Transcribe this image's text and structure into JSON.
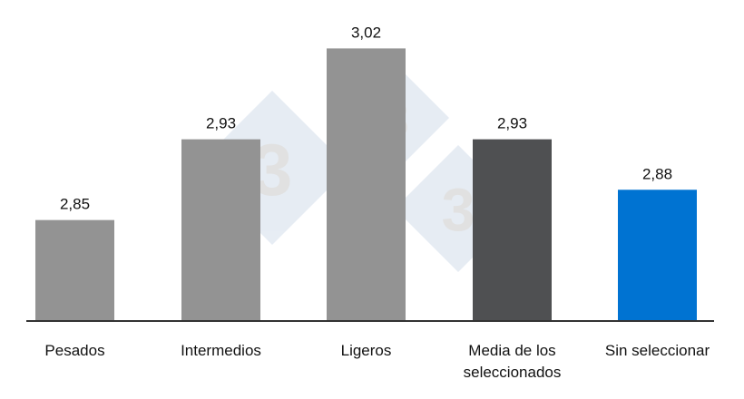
{
  "chart_data": {
    "type": "bar",
    "title": "",
    "xlabel": "",
    "ylabel": "",
    "categories": [
      "Pesados",
      "Intermedios",
      "Ligeros",
      [
        "Media de los",
        "seleccionados"
      ],
      "Sin seleccionar"
    ],
    "values": [
      2.85,
      2.93,
      3.02,
      2.93,
      2.88
    ],
    "data_labels": [
      "2,85",
      "2,93",
      "3,02",
      "2,93",
      "2,88"
    ],
    "colors": [
      "#939393",
      "#939393",
      "#939393",
      "#4f5052",
      "#0073d2"
    ],
    "axis_color": "#333333",
    "ylim": [
      2.75,
      3.05
    ],
    "grid": false,
    "legend": "none",
    "watermark": "333"
  }
}
